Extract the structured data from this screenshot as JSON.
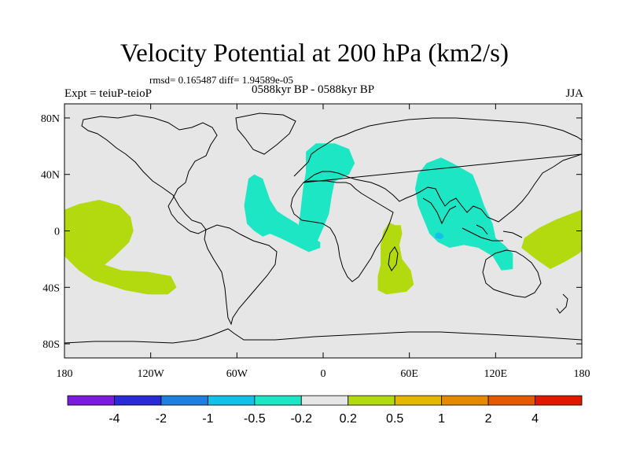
{
  "title": "Velocity Potential at 200 hPa (km2/s)",
  "subtitle_stats": "rmsd= 0.165487 diff= 1.94589e-05",
  "subtitle_left": "Expt = teiuP-teioP",
  "subtitle_center": "0588kyr BP - 0588kyr BP",
  "subtitle_right": "JJA",
  "lat_labels": [
    "80N",
    "40N",
    "0",
    "40S",
    "80S"
  ],
  "lat_values": [
    80,
    40,
    0,
    -40,
    -80
  ],
  "lon_labels": [
    "180",
    "120W",
    "60W",
    "0",
    "60E",
    "120E",
    "180"
  ],
  "lon_values": [
    -180,
    -120,
    -60,
    0,
    60,
    120,
    180
  ],
  "colorbar": {
    "colors": [
      "#7a1be0",
      "#2a2ad6",
      "#1f7fe0",
      "#13c0ea",
      "#1de6c4",
      "#e6e6e6",
      "#b3d90f",
      "#e5b800",
      "#e58a00",
      "#e55a00",
      "#e01800"
    ],
    "labels": [
      "-4",
      "-2",
      "-1",
      "-0.5",
      "-0.2",
      "0.2",
      "0.5",
      "1",
      "2",
      "4"
    ]
  },
  "chart_data": {
    "type": "map-contour",
    "variable": "Velocity Potential at 200 hPa",
    "units": "km2/s",
    "lon_range": [
      -180,
      180
    ],
    "lat_range": [
      -90,
      90
    ],
    "levels": [
      -4,
      -2,
      -1,
      -0.5,
      -0.2,
      0.2,
      0.5,
      1,
      2,
      4
    ],
    "anomalies": [
      {
        "name": "South America / Atlantic",
        "sign": "negative",
        "class": "-0.5 to -0.2",
        "color": "#1de6c4",
        "poly": [
          [
            -52,
            37
          ],
          [
            -48,
            40
          ],
          [
            -42,
            37
          ],
          [
            -37,
            22
          ],
          [
            -32,
            14
          ],
          [
            -26,
            10
          ],
          [
            -18,
            5
          ],
          [
            -12,
            -2
          ],
          [
            -2,
            -8
          ],
          [
            -2,
            -12
          ],
          [
            -10,
            -15
          ],
          [
            -20,
            -10
          ],
          [
            -30,
            -5
          ],
          [
            -37,
            -2
          ],
          [
            -42,
            -4
          ],
          [
            -48,
            0
          ],
          [
            -53,
            5
          ],
          [
            -55,
            18
          ]
        ]
      },
      {
        "name": "Mediterranean / West Africa",
        "sign": "negative",
        "class": "-0.5 to -0.2",
        "color": "#1de6c4",
        "poly": [
          [
            -12,
            56
          ],
          [
            -5,
            62
          ],
          [
            8,
            62
          ],
          [
            18,
            58
          ],
          [
            22,
            48
          ],
          [
            18,
            40
          ],
          [
            8,
            35
          ],
          [
            6,
            25
          ],
          [
            4,
            12
          ],
          [
            0,
            2
          ],
          [
            -6,
            -12
          ],
          [
            -16,
            -12
          ],
          [
            -18,
            -2
          ],
          [
            -16,
            12
          ],
          [
            -14,
            30
          ],
          [
            -12,
            42
          ]
        ]
      },
      {
        "name": "Indian Ocean / Asia",
        "sign": "negative",
        "class": "-0.5 to -0.2",
        "color": "#1de6c4",
        "poly": [
          [
            66,
            40
          ],
          [
            72,
            48
          ],
          [
            82,
            52
          ],
          [
            90,
            48
          ],
          [
            104,
            40
          ],
          [
            108,
            30
          ],
          [
            112,
            18
          ],
          [
            118,
            5
          ],
          [
            120,
            -5
          ],
          [
            126,
            -10
          ],
          [
            132,
            -16
          ],
          [
            132,
            -27
          ],
          [
            124,
            -28
          ],
          [
            118,
            -18
          ],
          [
            108,
            -12
          ],
          [
            98,
            -10
          ],
          [
            88,
            -12
          ],
          [
            80,
            -8
          ],
          [
            74,
            -2
          ],
          [
            70,
            8
          ],
          [
            66,
            18
          ],
          [
            64,
            30
          ]
        ]
      },
      {
        "name": "Indian Ocean core",
        "sign": "negative",
        "class": "-1 to -0.5",
        "color": "#13c0ea",
        "poly": [
          [
            80,
            -1
          ],
          [
            83,
            -2
          ],
          [
            84,
            -4
          ],
          [
            82,
            -6
          ],
          [
            78,
            -5
          ],
          [
            78,
            -2
          ]
        ]
      },
      {
        "name": "Central Pacific",
        "sign": "positive",
        "class": "0.2 to 0.5",
        "color": "#b3d90f",
        "poly": [
          [
            -180,
            15
          ],
          [
            -170,
            19
          ],
          [
            -156,
            22
          ],
          [
            -142,
            18
          ],
          [
            -134,
            10
          ],
          [
            -132,
            0
          ],
          [
            -135,
            -8
          ],
          [
            -145,
            -18
          ],
          [
            -152,
            -24
          ],
          [
            -140,
            -28
          ],
          [
            -122,
            -29
          ],
          [
            -106,
            -32
          ],
          [
            -102,
            -40
          ],
          [
            -108,
            -45
          ],
          [
            -122,
            -45
          ],
          [
            -138,
            -42
          ],
          [
            -160,
            -35
          ],
          [
            -170,
            -28
          ],
          [
            -180,
            -18
          ]
        ]
      },
      {
        "name": "SW Indian Ocean",
        "sign": "positive",
        "class": "0.2 to 0.5",
        "color": "#b3d90f",
        "poly": [
          [
            50,
            4
          ],
          [
            46,
            6
          ],
          [
            42,
            0
          ],
          [
            40,
            -10
          ],
          [
            40,
            -24
          ],
          [
            38,
            -32
          ],
          [
            38,
            -42
          ],
          [
            44,
            -45
          ],
          [
            58,
            -43
          ],
          [
            63,
            -38
          ],
          [
            61,
            -28
          ],
          [
            55,
            -20
          ],
          [
            53,
            -10
          ],
          [
            55,
            -2
          ],
          [
            54,
            4
          ]
        ]
      },
      {
        "name": "West Pacific",
        "sign": "positive",
        "class": "0.2 to 0.5",
        "color": "#b3d90f",
        "poly": [
          [
            180,
            15
          ],
          [
            172,
            12
          ],
          [
            162,
            8
          ],
          [
            150,
            2
          ],
          [
            140,
            -5
          ],
          [
            138,
            -12
          ],
          [
            148,
            -20
          ],
          [
            158,
            -27
          ],
          [
            168,
            -22
          ],
          [
            178,
            -16
          ],
          [
            180,
            -14
          ]
        ]
      }
    ]
  }
}
